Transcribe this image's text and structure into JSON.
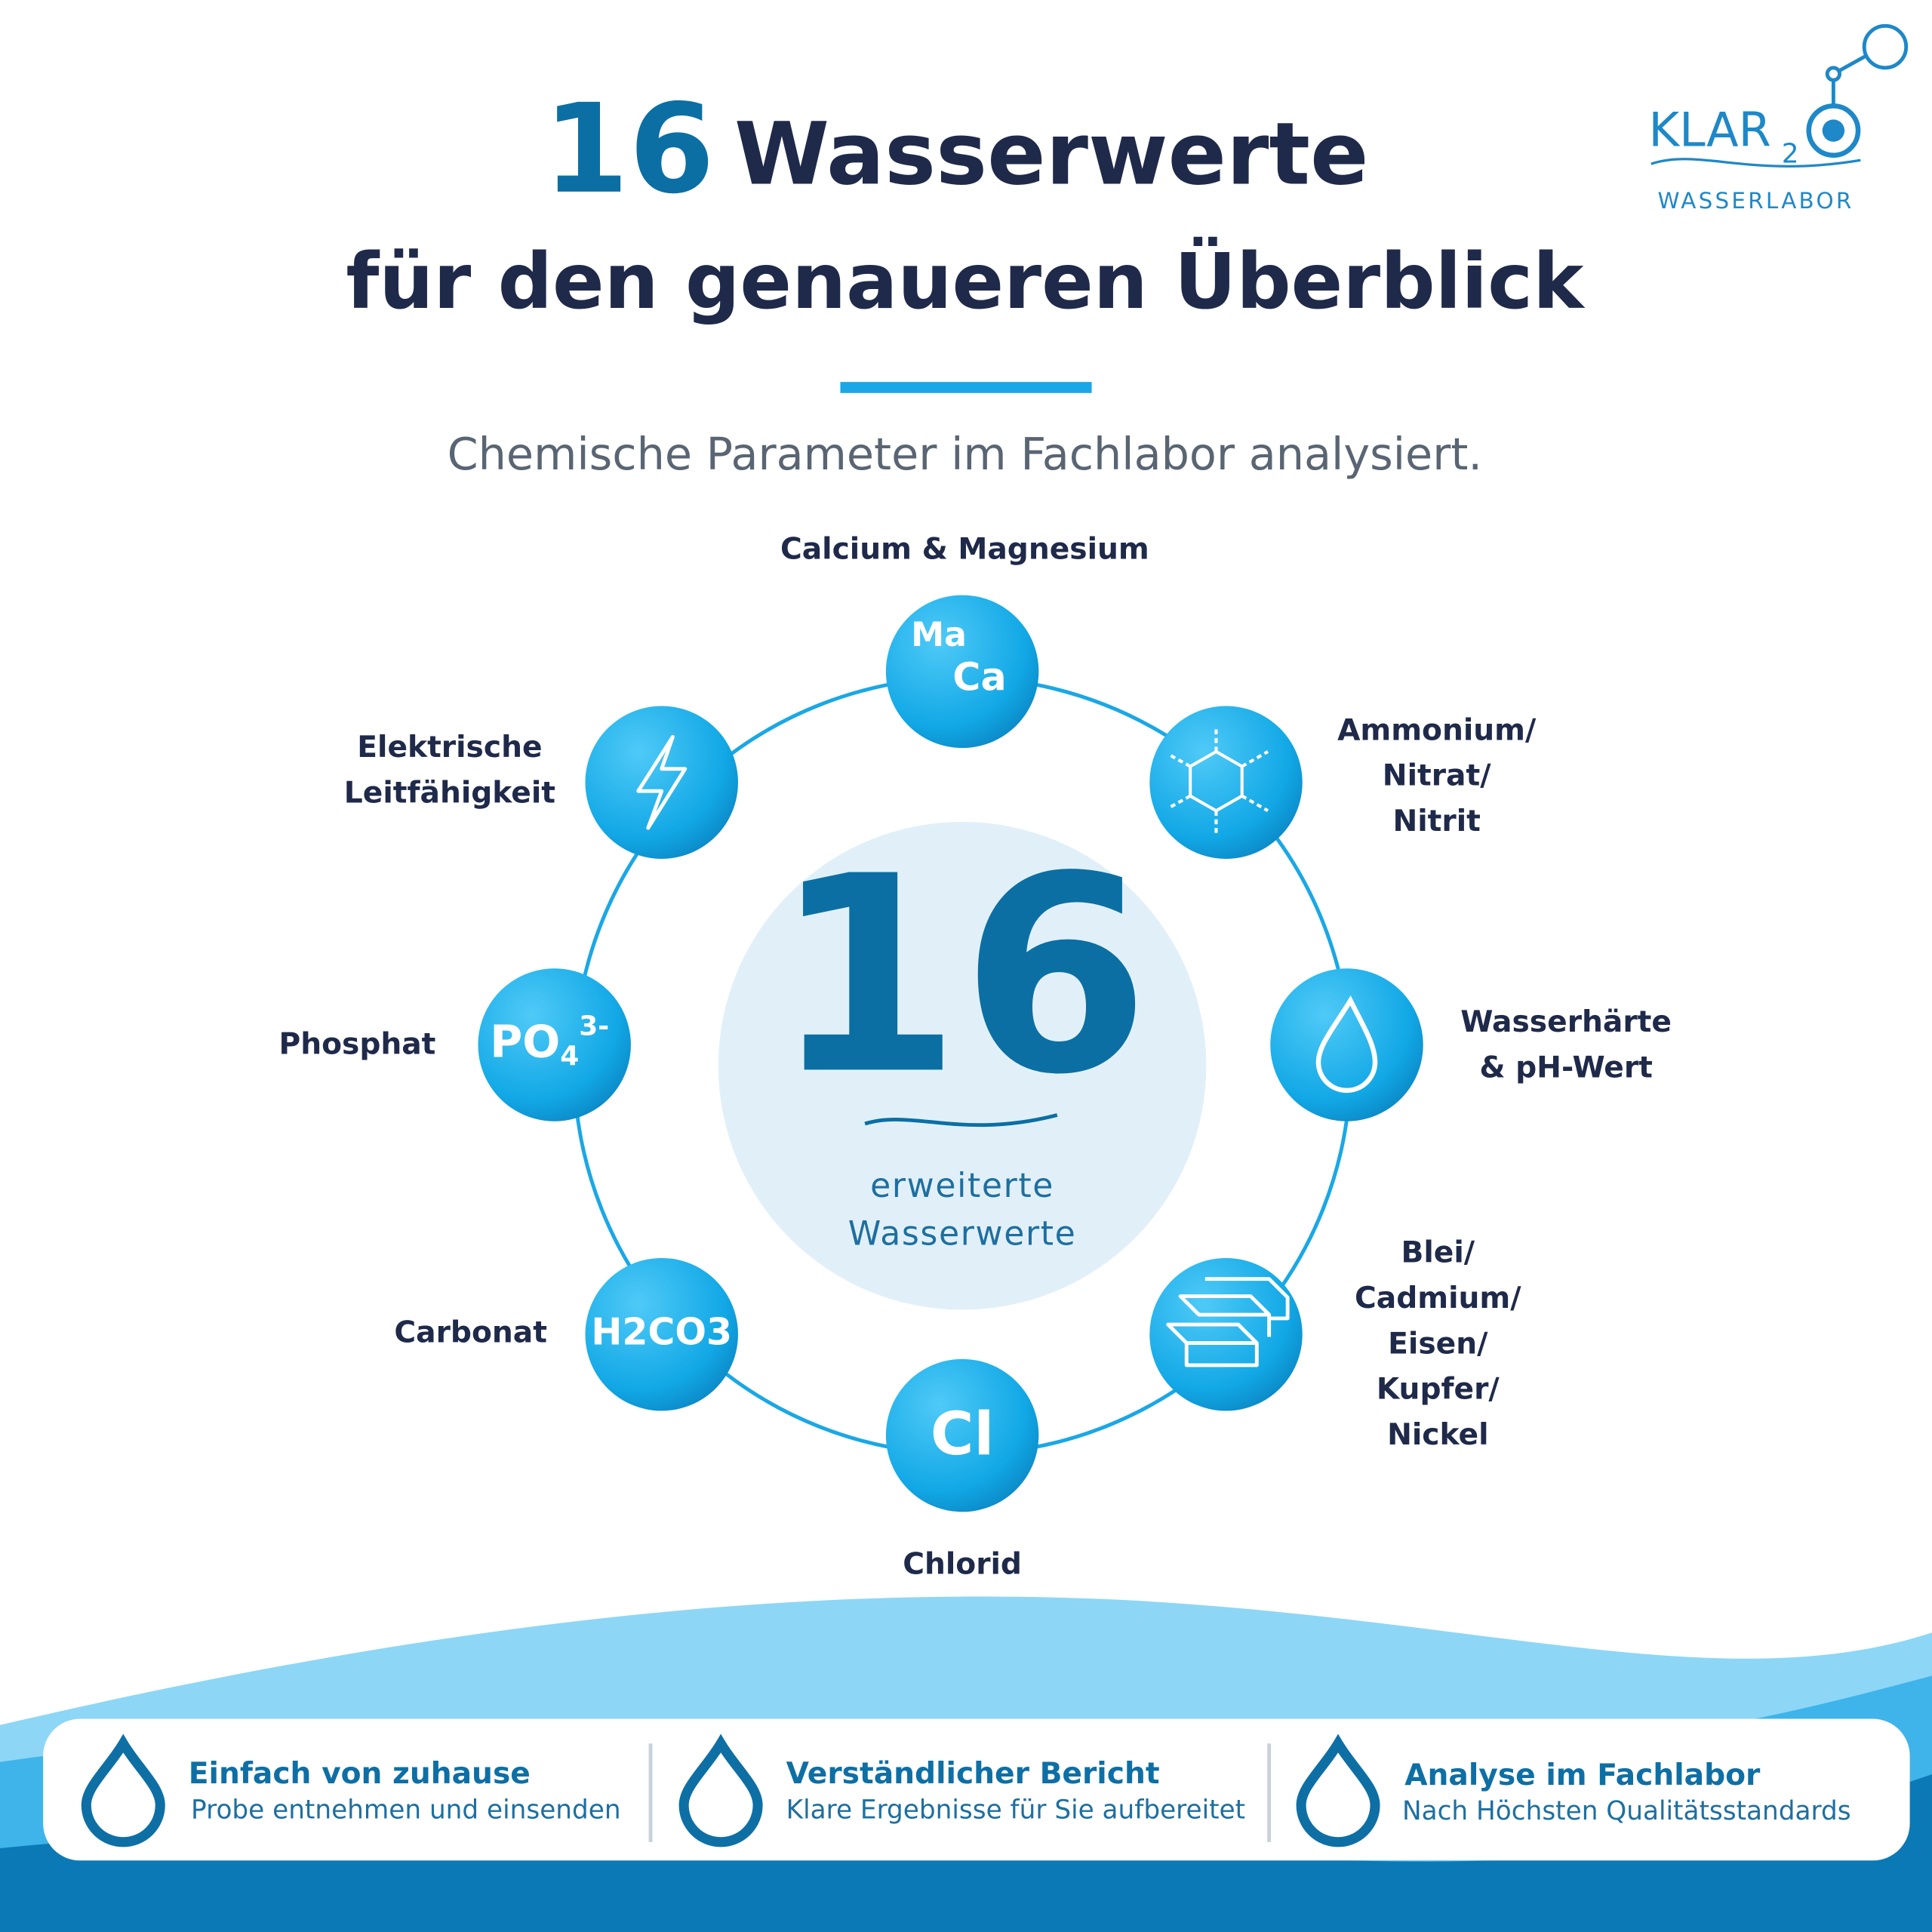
{
  "header": {
    "number": "16",
    "title": "Wasserwerte",
    "subtitle": "für den genaueren Überblick",
    "tagline": "Chemische Parameter im Fachlabor analysiert."
  },
  "logo": {
    "brand": "KLAR",
    "subscript": "2",
    "tagline": "WASSERLABOR"
  },
  "center": {
    "number": "16",
    "caption": [
      "erweiterte",
      "Wasserwerte"
    ]
  },
  "nodes": [
    {
      "label": [
        "Calcium & Magnesium"
      ],
      "icon": [
        "Ma",
        "Ca"
      ]
    },
    {
      "label": [
        "Ammonium/",
        "Nitrat/",
        "Nitrit"
      ]
    },
    {
      "label": [
        "Wasserhärte",
        "& pH-Wert"
      ]
    },
    {
      "label": [
        "Blei/",
        "Cadmium/",
        "Eisen/",
        "Kupfer/",
        "Nickel"
      ]
    },
    {
      "label": [
        "Chlorid"
      ],
      "icon": [
        "Cl"
      ]
    },
    {
      "label": [
        "Carbonat"
      ],
      "icon": [
        "H2CO3"
      ]
    },
    {
      "label": [
        "Phosphat"
      ],
      "icon": [
        "PO",
        "4",
        "3-"
      ]
    },
    {
      "label": [
        "Elektrische",
        "Leitfähigkeit"
      ]
    }
  ],
  "features": [
    {
      "title": "Einfach von zuhause",
      "text": "Probe entnehmen und einsenden"
    },
    {
      "title": "Verständlicher Bericht",
      "text": "Klare Ergebnisse für Sie aufbereitet"
    },
    {
      "title": "Analyse im Fachlabor",
      "text": "Nach Höchsten Qualitätsstandards"
    }
  ]
}
